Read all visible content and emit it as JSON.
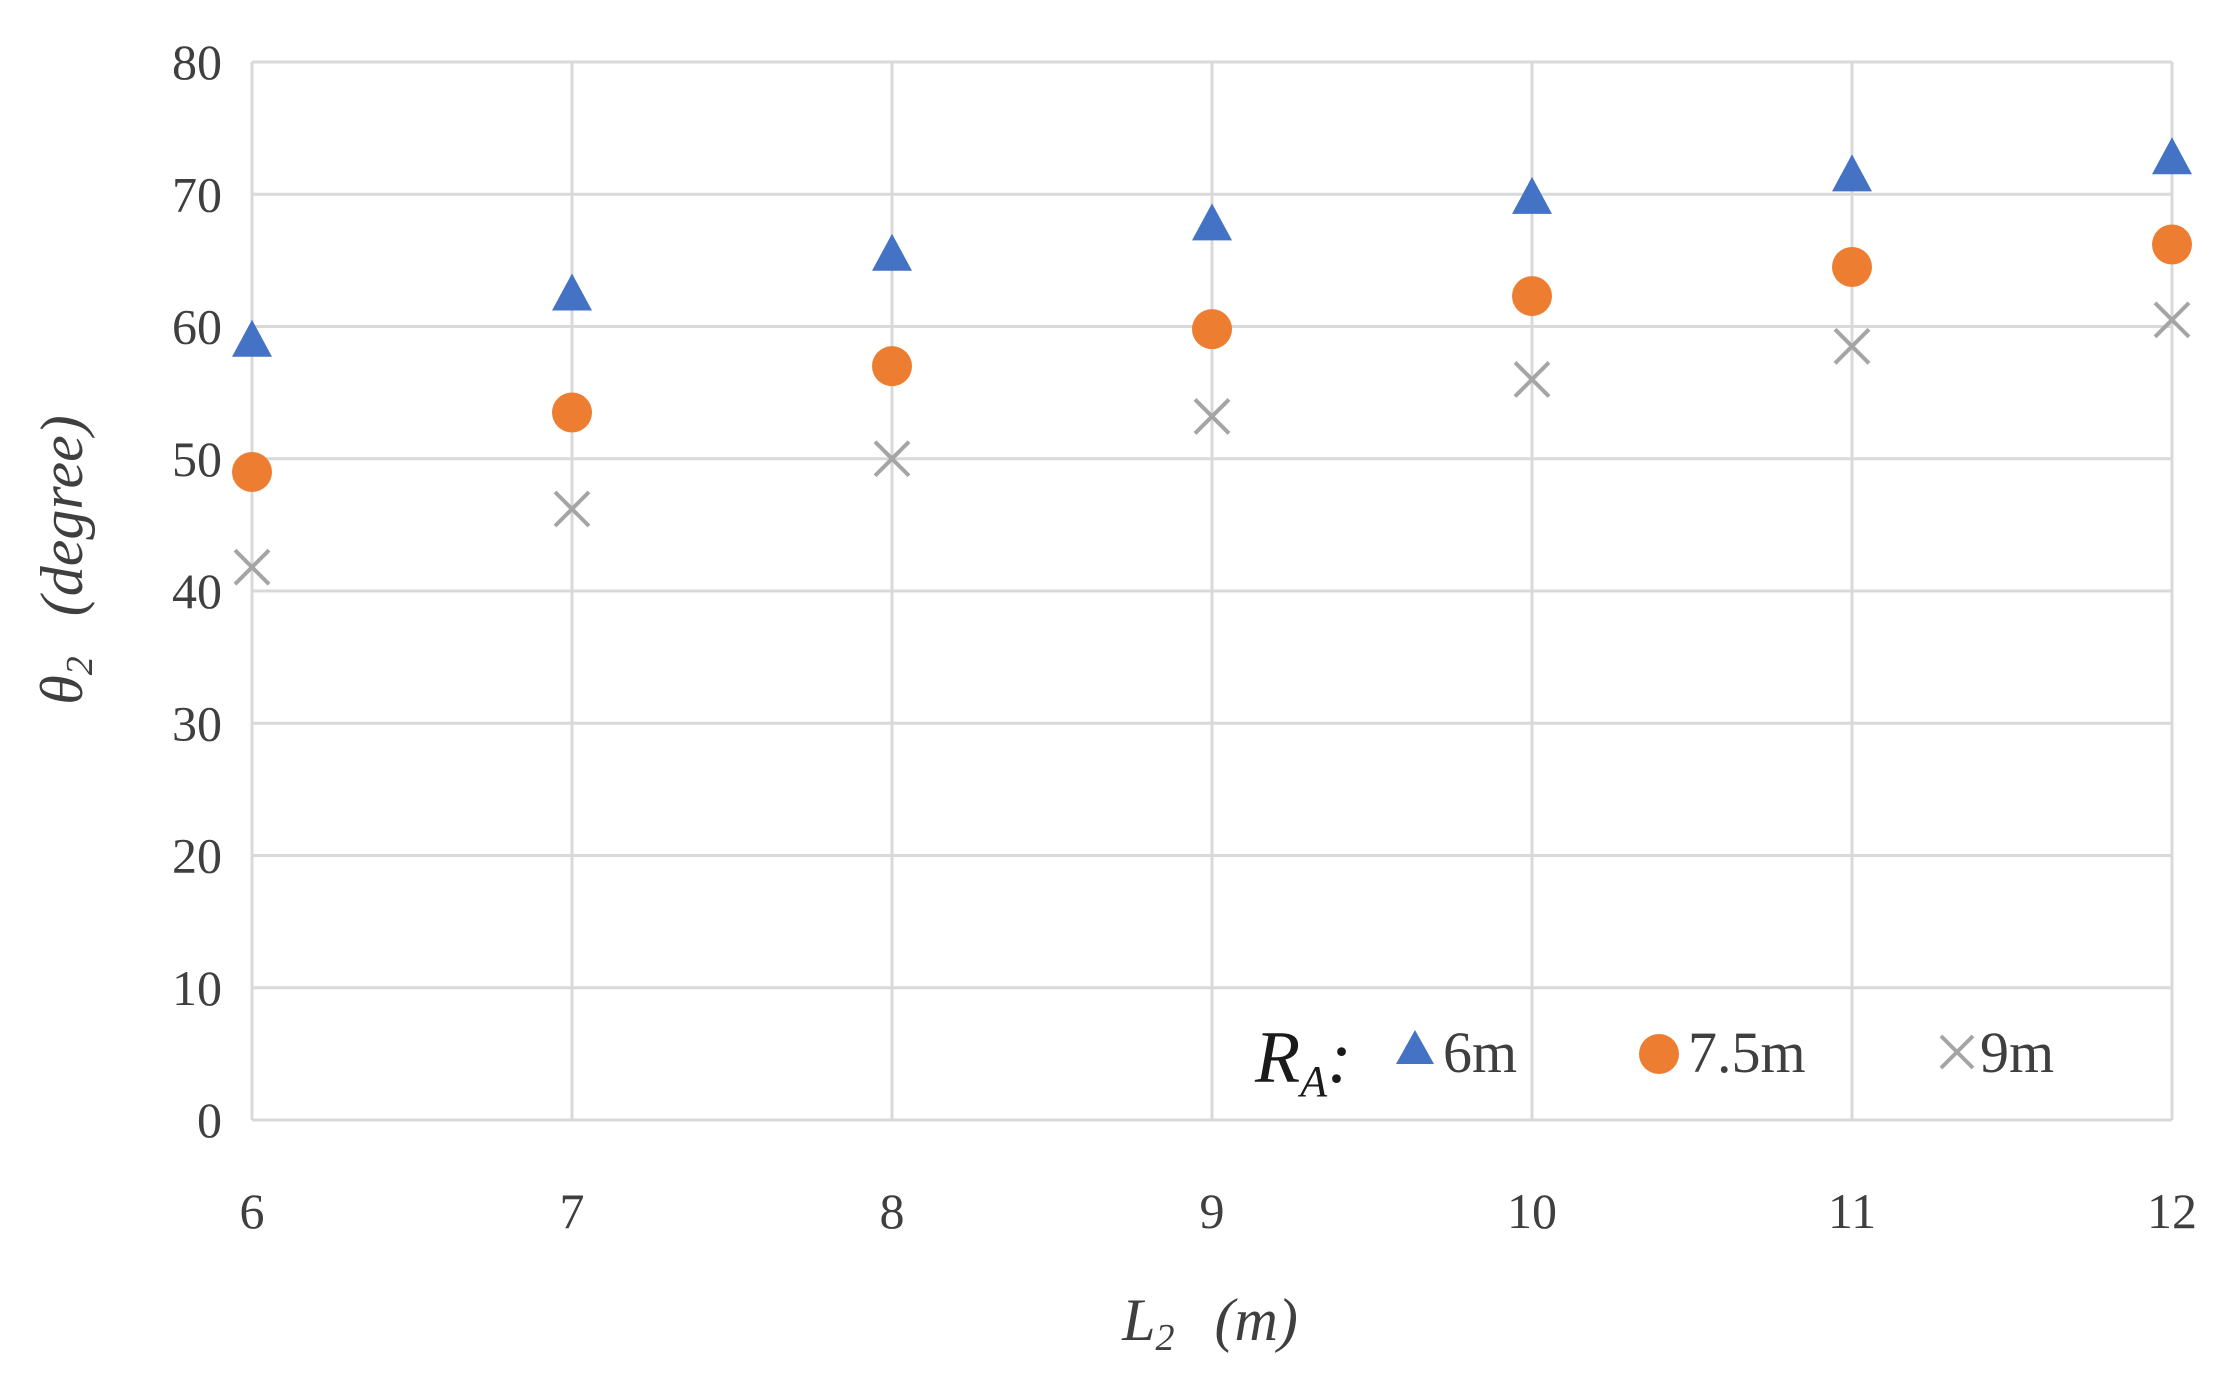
{
  "chart_data": {
    "type": "scatter",
    "xlabel": "L₂ (m)",
    "ylabel": "θ₂ (degree)",
    "xlim": [
      6,
      12
    ],
    "ylim": [
      0,
      80
    ],
    "x_ticks": [
      6,
      7,
      8,
      9,
      10,
      11,
      12
    ],
    "y_ticks": [
      0,
      10,
      20,
      30,
      40,
      50,
      60,
      70,
      80
    ],
    "grid": true,
    "legend": {
      "position": "bottom-right",
      "title": "R_A:"
    },
    "x": [
      6,
      7,
      8,
      9,
      10,
      11,
      12
    ],
    "series": [
      {
        "name": "6m",
        "marker": "triangle",
        "color": "#4472c4",
        "values": [
          59,
          62.5,
          65.5,
          67.8,
          69.8,
          71.5,
          72.8
        ]
      },
      {
        "name": "7.5m",
        "marker": "circle",
        "color": "#ed7d31",
        "values": [
          49,
          53.5,
          57,
          59.8,
          62.3,
          64.5,
          66.2
        ]
      },
      {
        "name": "9m",
        "marker": "x",
        "color": "#a5a5a5",
        "values": [
          41.8,
          46.2,
          50,
          53.2,
          56,
          58.5,
          60.5
        ]
      }
    ]
  }
}
